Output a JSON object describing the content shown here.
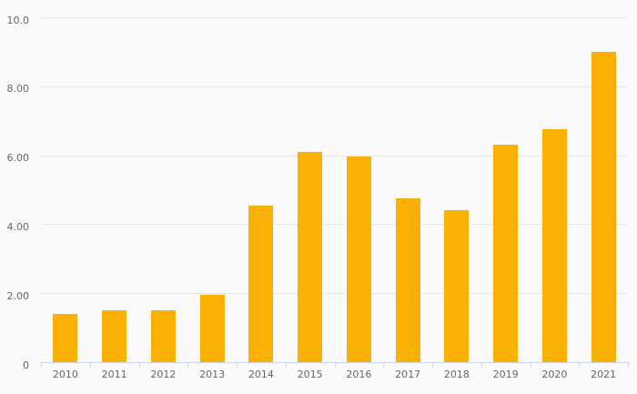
{
  "chart": {
    "background_color": "#fafafa",
    "bar_color": "#FAB005",
    "gridline_color": "#e6e6e6",
    "axis_color": "#ccd6eb",
    "label_color": "#666666"
  },
  "chart_data": {
    "type": "bar",
    "title": "",
    "xlabel": "",
    "ylabel": "",
    "categories": [
      "2010",
      "2011",
      "2012",
      "2013",
      "2014",
      "2015",
      "2016",
      "2017",
      "2018",
      "2019",
      "2020",
      "2021"
    ],
    "values": [
      1.4,
      1.5,
      1.5,
      1.95,
      4.55,
      6.1,
      5.95,
      4.75,
      4.4,
      6.3,
      6.75,
      9.0
    ],
    "series_color": "#FAB005",
    "ylim": [
      0,
      10
    ],
    "yticks": [
      {
        "value": 0,
        "label": "0"
      },
      {
        "value": 2,
        "label": "2.00"
      },
      {
        "value": 4,
        "label": "4.00"
      },
      {
        "value": 6,
        "label": "6.00"
      },
      {
        "value": 8,
        "label": "8.00"
      },
      {
        "value": 10,
        "label": "10.0"
      }
    ],
    "grid": "horizontal-only",
    "legend": "none"
  }
}
